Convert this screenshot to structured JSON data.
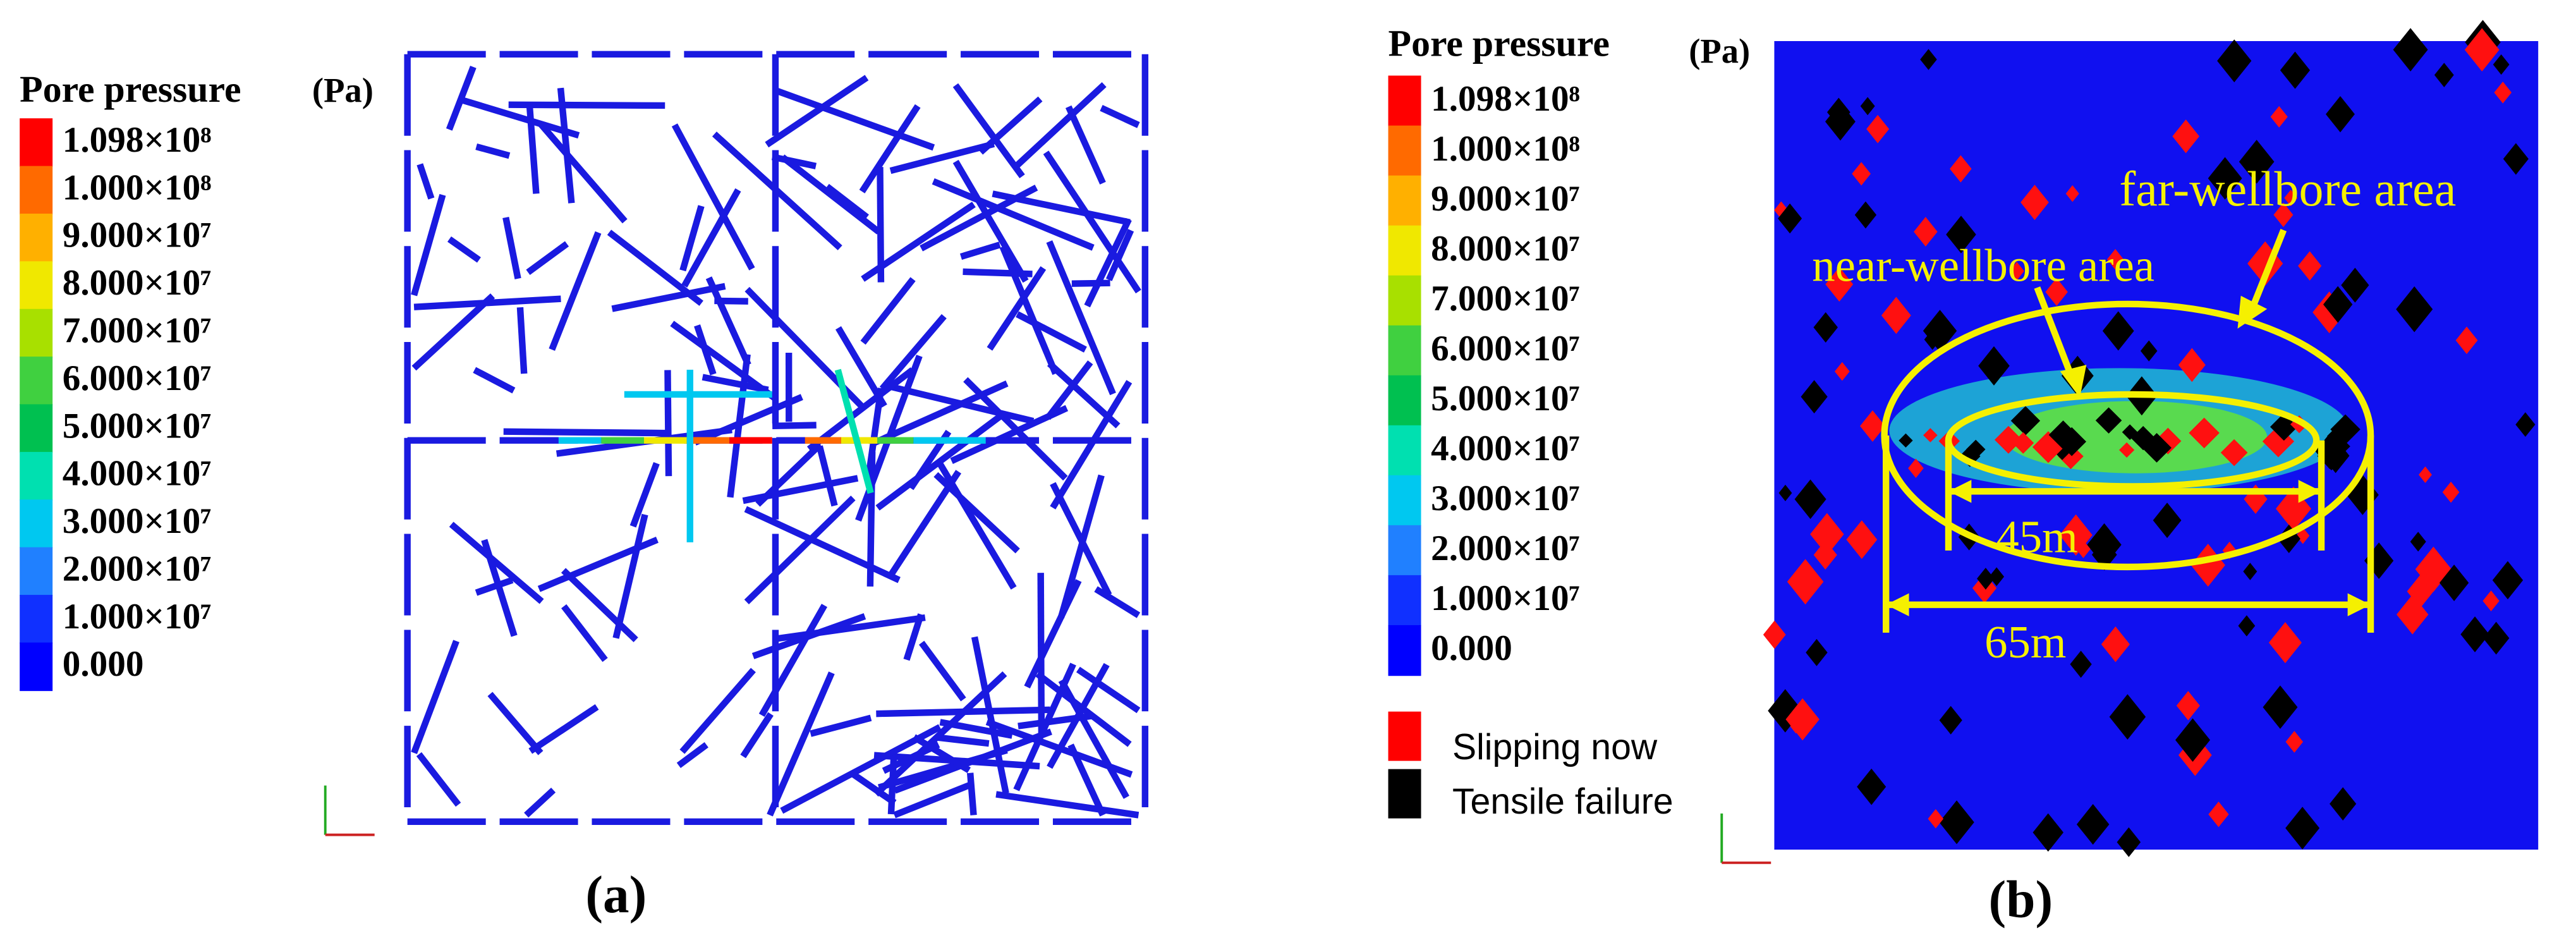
{
  "panel_a": {
    "legend": {
      "title": "Pore pressure",
      "unit": "(Pa)",
      "labels": [
        "1.098×10⁸",
        "1.000×10⁸",
        "9.000×10⁷",
        "8.000×10⁷",
        "7.000×10⁷",
        "6.000×10⁷",
        "5.000×10⁷",
        "4.000×10⁷",
        "3.000×10⁷",
        "2.000×10⁷",
        "1.000×10⁷",
        "0.000"
      ]
    },
    "label": "(a)"
  },
  "panel_b": {
    "legend": {
      "title": "Pore pressure",
      "unit": "(Pa)",
      "labels": [
        "1.098×10⁸",
        "1.000×10⁸",
        "9.000×10⁷",
        "8.000×10⁷",
        "7.000×10⁷",
        "6.000×10⁷",
        "5.000×10⁷",
        "4.000×10⁷",
        "3.000×10⁷",
        "2.000×10⁷",
        "1.000×10⁷",
        "0.000"
      ]
    },
    "failure_legend": [
      "Slipping now",
      "Tensile failure"
    ],
    "annotations": {
      "far": "far-wellbore  area",
      "near": "near-wellbore area",
      "inner_width": "45m",
      "outer_width": "65m"
    },
    "label": "(b)"
  }
}
